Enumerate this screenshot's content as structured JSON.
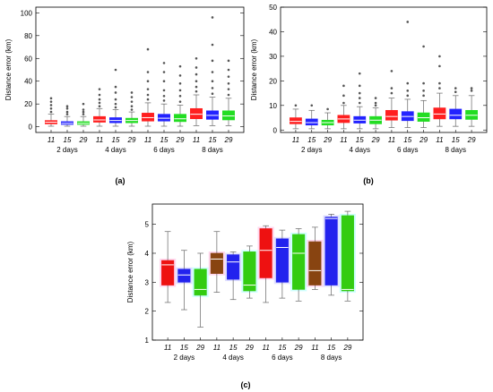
{
  "figure": {
    "panel_labels": [
      "(a)",
      "(b)",
      "(c)"
    ]
  },
  "chart_data": [
    {
      "type": "boxplot",
      "panel": "(a)",
      "ylabel": "Distance error (km)",
      "ylim": [
        -5,
        105
      ],
      "yticks": [
        0,
        20,
        40,
        60,
        80,
        100
      ],
      "groups": [
        "2 days",
        "4 days",
        "6 days",
        "8 days"
      ],
      "sub_labels": [
        "11",
        "15",
        "29"
      ],
      "colors": [
        "#ff1f1f",
        "#2222ff",
        "#22dd22"
      ],
      "boxes": [
        {
          "group": "2 days",
          "sub": "11",
          "min": 0.5,
          "q1": 2.5,
          "median": 4,
          "q3": 5.5,
          "max": 11,
          "outliers": [
            13,
            16,
            19,
            22,
            25
          ]
        },
        {
          "group": "2 days",
          "sub": "15",
          "min": 0.5,
          "q1": 2,
          "median": 3,
          "q3": 4.5,
          "max": 9,
          "outliers": [
            11,
            13,
            16,
            18
          ]
        },
        {
          "group": "2 days",
          "sub": "29",
          "min": 0.5,
          "q1": 2,
          "median": 3,
          "q3": 4.5,
          "max": 9,
          "outliers": [
            11,
            13,
            15,
            20
          ]
        },
        {
          "group": "4 days",
          "sub": "11",
          "min": 0.5,
          "q1": 4,
          "median": 6,
          "q3": 9,
          "max": 16,
          "outliers": [
            18,
            21,
            24,
            28,
            33
          ]
        },
        {
          "group": "4 days",
          "sub": "15",
          "min": 0.5,
          "q1": 3.5,
          "median": 5.5,
          "q3": 8,
          "max": 15,
          "outliers": [
            17,
            20,
            24,
            30,
            35,
            50
          ]
        },
        {
          "group": "4 days",
          "sub": "29",
          "min": 0.5,
          "q1": 3.5,
          "median": 5.5,
          "q3": 7.5,
          "max": 13,
          "outliers": [
            15,
            18,
            22,
            26,
            30
          ]
        },
        {
          "group": "6 days",
          "sub": "11",
          "min": 0.5,
          "q1": 5,
          "median": 8,
          "q3": 12,
          "max": 21,
          "outliers": [
            24,
            28,
            33,
            40,
            48,
            68
          ]
        },
        {
          "group": "6 days",
          "sub": "15",
          "min": 0.5,
          "q1": 5,
          "median": 7.5,
          "q3": 11,
          "max": 20,
          "outliers": [
            23,
            27,
            32,
            40,
            48,
            56
          ]
        },
        {
          "group": "6 days",
          "sub": "29",
          "min": 0.5,
          "q1": 4.5,
          "median": 7,
          "q3": 11,
          "max": 19,
          "outliers": [
            22,
            27,
            32,
            38,
            45,
            53
          ]
        },
        {
          "group": "8 days",
          "sub": "11",
          "min": 1,
          "q1": 7,
          "median": 11,
          "q3": 16,
          "max": 28,
          "outliers": [
            31,
            35,
            40,
            46,
            52,
            60
          ]
        },
        {
          "group": "8 days",
          "sub": "15",
          "min": 1,
          "q1": 6.5,
          "median": 10,
          "q3": 14,
          "max": 26,
          "outliers": [
            29,
            34,
            40,
            48,
            58,
            72,
            96
          ]
        },
        {
          "group": "8 days",
          "sub": "29",
          "min": 1,
          "q1": 6,
          "median": 9.5,
          "q3": 14,
          "max": 25,
          "outliers": [
            28,
            33,
            38,
            44,
            50,
            58
          ]
        }
      ]
    },
    {
      "type": "boxplot",
      "panel": "(b)",
      "ylabel": "Distance error (km)",
      "ylim": [
        -1,
        50
      ],
      "yticks": [
        0,
        10,
        20,
        30,
        40,
        50
      ],
      "groups": [
        "2 days",
        "4 days",
        "6 days",
        "8 days"
      ],
      "sub_labels": [
        "11",
        "15",
        "29"
      ],
      "colors": [
        "#ff1f1f",
        "#2222ff",
        "#22dd22"
      ],
      "boxes": [
        {
          "group": "2 days",
          "sub": "11",
          "min": 0.5,
          "q1": 2.5,
          "median": 3.5,
          "q3": 5,
          "max": 8.5,
          "outliers": [
            10
          ]
        },
        {
          "group": "2 days",
          "sub": "15",
          "min": 0.5,
          "q1": 2,
          "median": 3,
          "q3": 4.5,
          "max": 8,
          "outliers": [
            10
          ]
        },
        {
          "group": "2 days",
          "sub": "29",
          "min": 0.5,
          "q1": 2,
          "median": 3,
          "q3": 4,
          "max": 7,
          "outliers": [
            8.5
          ]
        },
        {
          "group": "4 days",
          "sub": "11",
          "min": 0.5,
          "q1": 3,
          "median": 4.5,
          "q3": 6,
          "max": 10,
          "outliers": [
            11,
            14,
            18
          ]
        },
        {
          "group": "4 days",
          "sub": "15",
          "min": 0.5,
          "q1": 2.8,
          "median": 4,
          "q3": 5.5,
          "max": 9.5,
          "outliers": [
            11,
            13,
            15,
            18,
            23
          ]
        },
        {
          "group": "4 days",
          "sub": "29",
          "min": 0.5,
          "q1": 2.5,
          "median": 4,
          "q3": 5.5,
          "max": 9,
          "outliers": [
            10,
            11,
            13
          ]
        },
        {
          "group": "6 days",
          "sub": "11",
          "min": 1,
          "q1": 4,
          "median": 5.5,
          "q3": 8,
          "max": 13,
          "outliers": [
            15,
            17,
            24
          ]
        },
        {
          "group": "6 days",
          "sub": "15",
          "min": 1,
          "q1": 3.8,
          "median": 5.5,
          "q3": 7.5,
          "max": 12.5,
          "outliers": [
            14,
            16,
            19,
            44
          ]
        },
        {
          "group": "6 days",
          "sub": "29",
          "min": 1,
          "q1": 3.5,
          "median": 5,
          "q3": 7,
          "max": 12,
          "outliers": [
            14,
            16,
            19,
            34
          ]
        },
        {
          "group": "8 days",
          "sub": "11",
          "min": 1.5,
          "q1": 4.5,
          "median": 6.5,
          "q3": 9,
          "max": 15,
          "outliers": [
            17,
            19,
            26,
            30
          ]
        },
        {
          "group": "8 days",
          "sub": "15",
          "min": 1.5,
          "q1": 4.5,
          "median": 6,
          "q3": 8.5,
          "max": 14,
          "outliers": [
            15.5,
            17
          ]
        },
        {
          "group": "8 days",
          "sub": "29",
          "min": 1.5,
          "q1": 4.3,
          "median": 6,
          "q3": 8,
          "max": 14,
          "outliers": [
            16,
            17
          ]
        }
      ]
    },
    {
      "type": "boxplot",
      "panel": "(c)",
      "ylabel": "Distance error (km)",
      "ylim": [
        1,
        5.7
      ],
      "yticks": [
        1,
        2,
        3,
        4,
        5
      ],
      "groups": [
        "2 days",
        "4 days",
        "6 days",
        "8 days"
      ],
      "sub_labels": [
        "11",
        "15",
        "29"
      ],
      "colors": [
        "#ff1f1f",
        "#2222ff",
        "#22dd22"
      ],
      "group_box_colors": {
        "2 days": [
          "#ee1111",
          "#2222ee",
          "#33cc11"
        ],
        "4 days": [
          "#884411",
          "#2222ee",
          "#33cc11"
        ],
        "6 days": [
          "#ee1111",
          "#2222ee",
          "#33cc11"
        ],
        "8 days": [
          "#884411",
          "#2222ee",
          "#33cc11"
        ]
      },
      "shade_colors": [
        "#ffb6e0",
        "#c7c7ff",
        "#a9ffff"
      ],
      "boxes": [
        {
          "group": "2 days",
          "sub": "11",
          "min": 2.3,
          "q1": 2.9,
          "median": 3.6,
          "q3": 3.75,
          "max": 4.75
        },
        {
          "group": "2 days",
          "sub": "15",
          "min": 2.05,
          "q1": 3.0,
          "median": 3.25,
          "q3": 3.45,
          "max": 4.1
        },
        {
          "group": "2 days",
          "sub": "29",
          "min": 1.45,
          "q1": 2.55,
          "median": 2.75,
          "q3": 3.45,
          "max": 4.0
        },
        {
          "group": "4 days",
          "sub": "11",
          "min": 2.65,
          "q1": 3.3,
          "median": 3.8,
          "q3": 4.0,
          "max": 4.75
        },
        {
          "group": "4 days",
          "sub": "15",
          "min": 2.4,
          "q1": 3.1,
          "median": 3.7,
          "q3": 3.95,
          "max": 4.05
        },
        {
          "group": "4 days",
          "sub": "29",
          "min": 2.45,
          "q1": 2.7,
          "median": 2.9,
          "q3": 4.05,
          "max": 4.25
        },
        {
          "group": "6 days",
          "sub": "11",
          "min": 2.3,
          "q1": 3.15,
          "median": 4.1,
          "q3": 4.85,
          "max": 4.95
        },
        {
          "group": "6 days",
          "sub": "15",
          "min": 2.45,
          "q1": 3.0,
          "median": 4.2,
          "q3": 4.5,
          "max": 4.8
        },
        {
          "group": "6 days",
          "sub": "29",
          "min": 2.35,
          "q1": 2.75,
          "median": 4.0,
          "q3": 4.65,
          "max": 4.85
        },
        {
          "group": "8 days",
          "sub": "11",
          "min": 2.75,
          "q1": 2.9,
          "median": 3.4,
          "q3": 4.4,
          "max": 4.9
        },
        {
          "group": "8 days",
          "sub": "15",
          "min": 2.55,
          "q1": 2.9,
          "median": 5.2,
          "q3": 5.25,
          "max": 5.35
        },
        {
          "group": "8 days",
          "sub": "29",
          "min": 2.35,
          "q1": 2.7,
          "median": 2.75,
          "q3": 5.3,
          "max": 5.45
        }
      ]
    }
  ]
}
